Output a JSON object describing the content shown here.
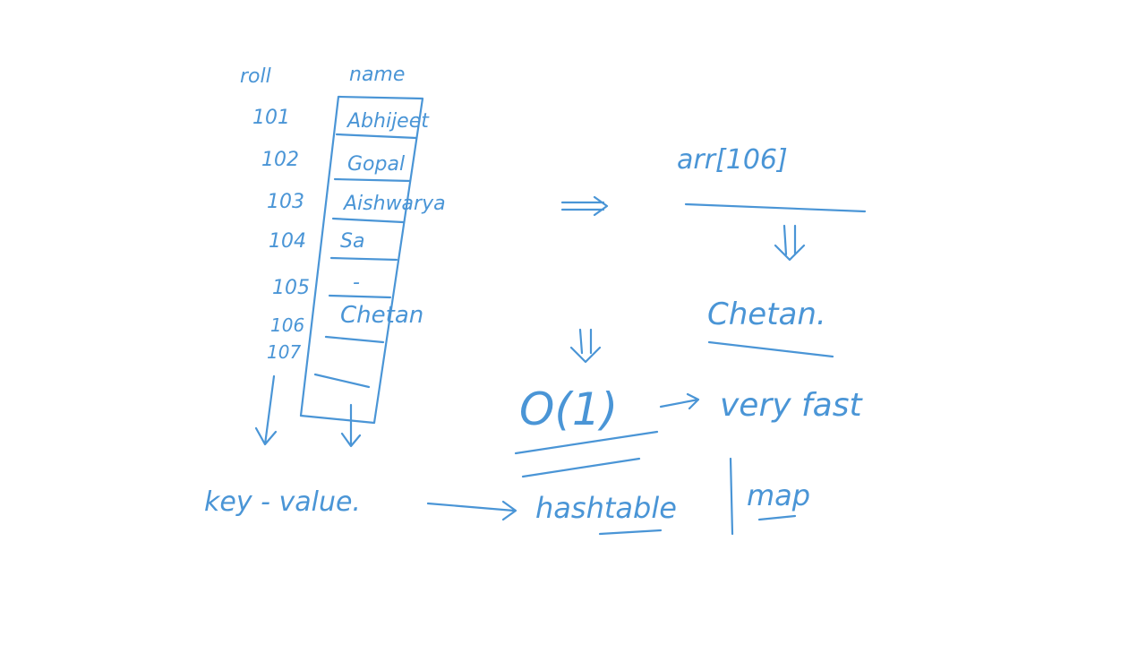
{
  "ink_color": "#4a95d6",
  "table": {
    "headers": {
      "roll": "roll",
      "name": "name"
    },
    "rows": [
      {
        "roll": "101",
        "name": "Abhijeet"
      },
      {
        "roll": "102",
        "name": "Gopal"
      },
      {
        "roll": "103",
        "name": "Aishwarya"
      },
      {
        "roll": "104",
        "name": "Sa"
      },
      {
        "roll": "105",
        "name": "-"
      },
      {
        "roll": "106",
        "name": "Chetan"
      },
      {
        "roll": "107",
        "name": ""
      }
    ]
  },
  "array_label": "arr[106]",
  "array_result": "Chetan.",
  "complexity": "O(1)",
  "speed_label": "very fast",
  "key_value_label": "key - value.",
  "structures": {
    "hashtable": "hashtable",
    "map": "map"
  }
}
